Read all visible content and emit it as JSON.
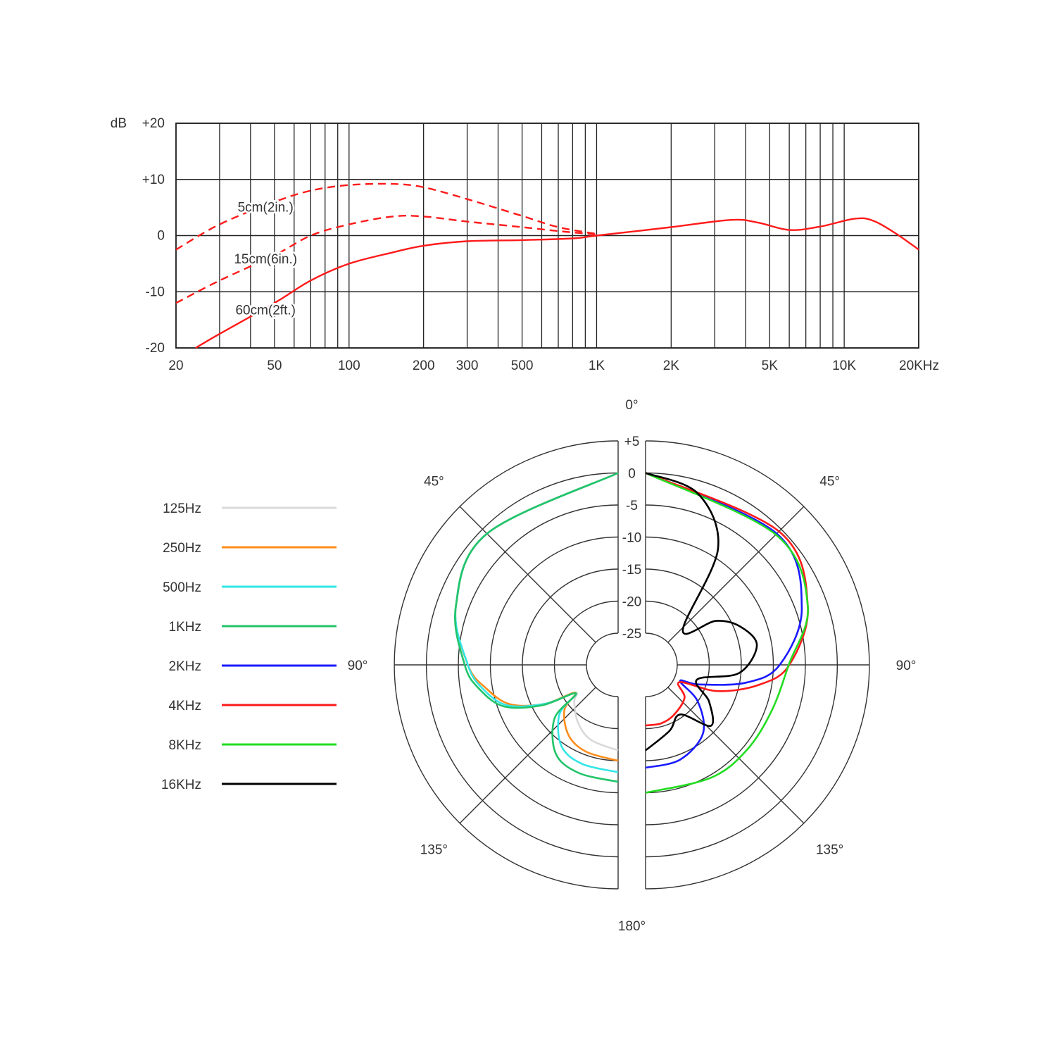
{
  "chart_data": [
    {
      "type": "line",
      "title": "",
      "xlabel": "",
      "ylabel": "dB",
      "xscale": "log",
      "xlim": [
        20,
        20000
      ],
      "ylim": [
        -20,
        20
      ],
      "grid": true,
      "xticks": [
        {
          "value": 20,
          "label": "20"
        },
        {
          "value": 50,
          "label": "50"
        },
        {
          "value": 100,
          "label": "100"
        },
        {
          "value": 200,
          "label": "200"
        },
        {
          "value": 300,
          "label": "300"
        },
        {
          "value": 500,
          "label": "500"
        },
        {
          "value": 1000,
          "label": "1K"
        },
        {
          "value": 2000,
          "label": "2K"
        },
        {
          "value": 5000,
          "label": "5K"
        },
        {
          "value": 10000,
          "label": "10K"
        },
        {
          "value": 20000,
          "label": "20KHz"
        }
      ],
      "yticks": [
        {
          "value": 20,
          "label": "+20"
        },
        {
          "value": 10,
          "label": "+10"
        },
        {
          "value": 0,
          "label": "0"
        },
        {
          "value": -10,
          "label": "-10"
        },
        {
          "value": -20,
          "label": "-20"
        }
      ],
      "series": [
        {
          "name": "5cm(2in.)",
          "color": "#ff1a1a",
          "style": "dashed",
          "label_at": [
            46,
            5
          ],
          "points": [
            [
              20,
              -2.5
            ],
            [
              30,
              2
            ],
            [
              50,
              6
            ],
            [
              70,
              8
            ],
            [
              100,
              9
            ],
            [
              150,
              9.2
            ],
            [
              200,
              8.6
            ],
            [
              300,
              6.5
            ],
            [
              500,
              3.5
            ],
            [
              700,
              1.5
            ],
            [
              1000,
              0.3
            ]
          ]
        },
        {
          "name": "15cm(6in.)",
          "color": "#ff1a1a",
          "style": "dashed",
          "label_at": [
            46,
            -4.2
          ],
          "points": [
            [
              20,
              -12
            ],
            [
              30,
              -8
            ],
            [
              50,
              -3.5
            ],
            [
              70,
              0
            ],
            [
              100,
              2
            ],
            [
              150,
              3.4
            ],
            [
              200,
              3.4
            ],
            [
              300,
              2.5
            ],
            [
              500,
              1.5
            ],
            [
              700,
              0.8
            ],
            [
              1000,
              0.2
            ]
          ]
        },
        {
          "name": "60cm(2ft.)",
          "color": "#ff1a1a",
          "style": "solid",
          "label_at": [
            46,
            -13.3
          ],
          "points": [
            [
              24,
              -20
            ],
            [
              30,
              -17.5
            ],
            [
              50,
              -12
            ],
            [
              70,
              -8
            ],
            [
              100,
              -5
            ],
            [
              150,
              -3
            ],
            [
              200,
              -1.8
            ],
            [
              300,
              -1
            ],
            [
              500,
              -0.8
            ],
            [
              800,
              -0.5
            ],
            [
              1000,
              0
            ],
            [
              2000,
              1.5
            ],
            [
              3500,
              2.8
            ],
            [
              4500,
              2.3
            ],
            [
              6000,
              1
            ],
            [
              8000,
              1.6
            ],
            [
              11000,
              3
            ],
            [
              13000,
              2.7
            ],
            [
              16000,
              0.5
            ],
            [
              20000,
              -2.5
            ]
          ]
        }
      ]
    },
    {
      "type": "polar",
      "rlim": [
        -25,
        5
      ],
      "r_labels": [
        {
          "value": 5,
          "label": "+5"
        },
        {
          "value": 0,
          "label": "0"
        },
        {
          "value": -5,
          "label": "-5"
        },
        {
          "value": -10,
          "label": "-10"
        },
        {
          "value": -15,
          "label": "-15"
        },
        {
          "value": -20,
          "label": "-20"
        },
        {
          "value": -25,
          "label": "-25"
        }
      ],
      "angle_labels": [
        {
          "angle": 0,
          "side": "center",
          "label": "0°"
        },
        {
          "angle": 45,
          "side": "left",
          "label": "45°"
        },
        {
          "angle": 45,
          "side": "right",
          "label": "45°"
        },
        {
          "angle": 90,
          "side": "left",
          "label": "90°"
        },
        {
          "angle": 90,
          "side": "right",
          "label": "90°"
        },
        {
          "angle": 135,
          "side": "left",
          "label": "135°"
        },
        {
          "angle": 135,
          "side": "right",
          "label": "135°"
        },
        {
          "angle": 180,
          "side": "center",
          "label": "180°"
        }
      ],
      "series": [
        {
          "name": "125Hz",
          "color": "#d9d9d9",
          "side": "left",
          "points": [
            [
              0,
              0
            ],
            [
              45,
              -1
            ],
            [
              70,
              -3
            ],
            [
              90,
              -6.5
            ],
            [
              100,
              -9
            ],
            [
              110,
              -12
            ],
            [
              118,
              -17
            ],
            [
              123,
              -22
            ],
            [
              130,
              -21
            ],
            [
              145,
              -19
            ],
            [
              160,
              -17.5
            ],
            [
              180,
              -16.6
            ]
          ]
        },
        {
          "name": "250Hz",
          "color": "#ff8c1a",
          "side": "left",
          "points": [
            [
              0,
              0
            ],
            [
              45,
              -1
            ],
            [
              70,
              -3
            ],
            [
              90,
              -6.5
            ],
            [
              100,
              -9
            ],
            [
              110,
              -12
            ],
            [
              118,
              -17
            ],
            [
              123,
              -22
            ],
            [
              130,
              -19
            ],
            [
              145,
              -16.5
            ],
            [
              160,
              -15.5
            ],
            [
              180,
              -15
            ]
          ]
        },
        {
          "name": "500Hz",
          "color": "#33e6e6",
          "side": "left",
          "points": [
            [
              0,
              0
            ],
            [
              45,
              -1
            ],
            [
              70,
              -3
            ],
            [
              90,
              -6.5
            ],
            [
              100,
              -8.5
            ],
            [
              110,
              -11.5
            ],
            [
              118,
              -17
            ],
            [
              124,
              -22
            ],
            [
              130,
              -18
            ],
            [
              145,
              -14.5
            ],
            [
              160,
              -13.5
            ],
            [
              180,
              -13.2
            ]
          ]
        },
        {
          "name": "1KHz",
          "color": "#22c46a",
          "side": "left",
          "points": [
            [
              0,
              0
            ],
            [
              45,
              -1
            ],
            [
              70,
              -3
            ],
            [
              90,
              -6
            ],
            [
              100,
              -8
            ],
            [
              110,
              -11
            ],
            [
              118,
              -16.5
            ],
            [
              124,
              -22
            ],
            [
              130,
              -17
            ],
            [
              145,
              -13
            ],
            [
              160,
              -12
            ],
            [
              180,
              -11.7
            ]
          ]
        },
        {
          "name": "2KHz",
          "color": "#1a1aff",
          "side": "right",
          "points": [
            [
              0,
              0
            ],
            [
              45,
              -1
            ],
            [
              70,
              -4
            ],
            [
              90,
              -9
            ],
            [
              100,
              -14
            ],
            [
              110,
              -21
            ],
            [
              115,
              -24
            ],
            [
              125,
              -20
            ],
            [
              140,
              -16
            ],
            [
              160,
              -14.2
            ],
            [
              180,
              -13.9
            ]
          ]
        },
        {
          "name": "4KHz",
          "color": "#ff1a1a",
          "side": "right",
          "points": [
            [
              0,
              0
            ],
            [
              45,
              -0.5
            ],
            [
              70,
              -3
            ],
            [
              90,
              -7.5
            ],
            [
              100,
              -12
            ],
            [
              110,
              -18
            ],
            [
              117,
              -24
            ],
            [
              130,
              -22
            ],
            [
              150,
              -21
            ],
            [
              165,
              -20.5
            ],
            [
              180,
              -20.5
            ]
          ]
        },
        {
          "name": "8KHz",
          "color": "#22dd22",
          "side": "right",
          "points": [
            [
              0,
              0
            ],
            [
              45,
              -1.2
            ],
            [
              70,
              -3
            ],
            [
              90,
              -7.6
            ],
            [
              110,
              -9
            ],
            [
              130,
              -9.3
            ],
            [
              150,
              -9.6
            ],
            [
              180,
              -10
            ]
          ]
        },
        {
          "name": "16KHz",
          "color": "#000000",
          "side": "right",
          "points": [
            [
              0,
              0
            ],
            [
              17,
              -2
            ],
            [
              32,
              -8.6
            ],
            [
              47,
              -22
            ],
            [
              58,
              -17
            ],
            [
              68,
              -14
            ],
            [
              80,
              -12.3
            ],
            [
              95,
              -15.3
            ],
            [
              106,
              -21.6
            ],
            [
              120,
              -18.5
            ],
            [
              133,
              -16
            ],
            [
              145,
              -20.5
            ],
            [
              160,
              -19
            ],
            [
              180,
              -16.6
            ]
          ]
        }
      ]
    }
  ]
}
